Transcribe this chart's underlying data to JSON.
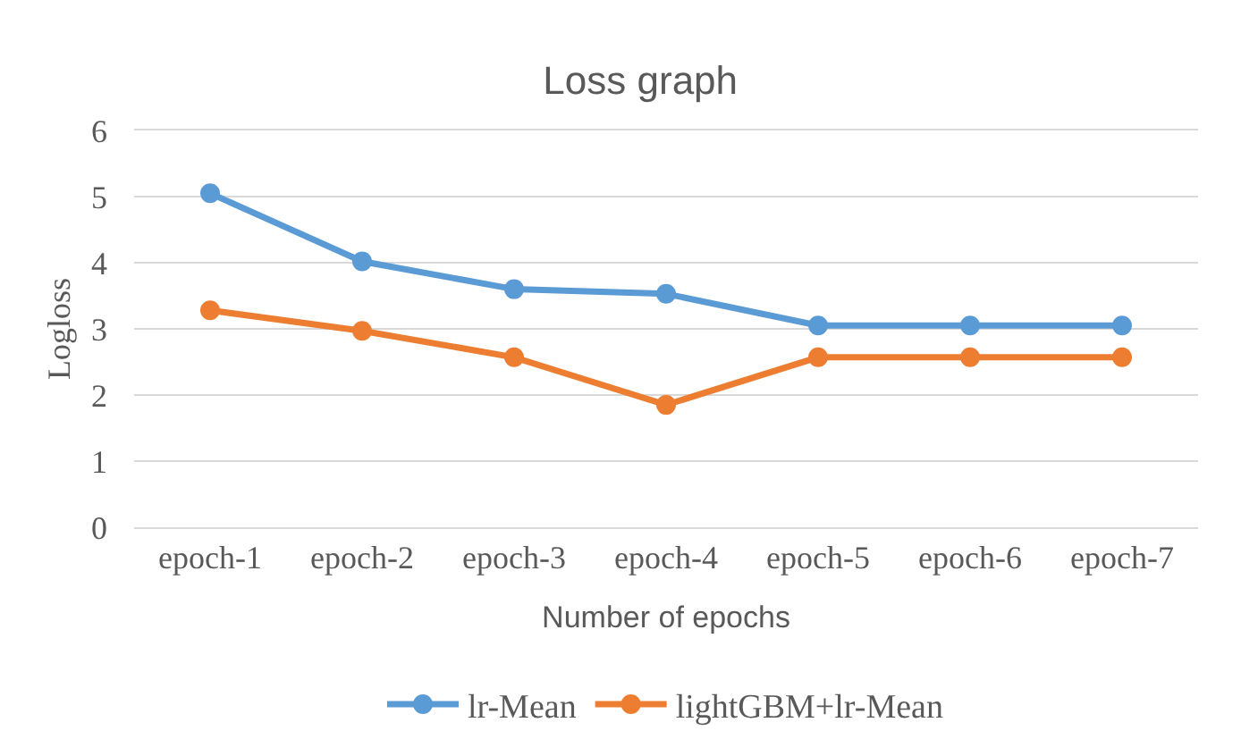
{
  "chart_data": {
    "type": "line",
    "title": "Loss graph",
    "xlabel": "Number of epochs",
    "ylabel": "Logloss",
    "categories": [
      "epoch-1",
      "epoch-2",
      "epoch-3",
      "epoch-4",
      "epoch-5",
      "epoch-6",
      "epoch-7"
    ],
    "series": [
      {
        "name": "lr-Mean",
        "color": "#5b9bd5",
        "values": [
          5.05,
          4.02,
          3.6,
          3.53,
          3.05,
          3.05,
          3.05
        ]
      },
      {
        "name": "lightGBM+lr-Mean",
        "color": "#ed7d31",
        "values": [
          3.28,
          2.97,
          2.57,
          1.85,
          2.57,
          2.57,
          2.57
        ]
      }
    ],
    "ylim": [
      0,
      6
    ],
    "yticks": [
      0,
      1,
      2,
      3,
      4,
      5,
      6
    ],
    "grid": "y",
    "legend": "bottom",
    "marker": "circle",
    "line_style": "solid"
  }
}
